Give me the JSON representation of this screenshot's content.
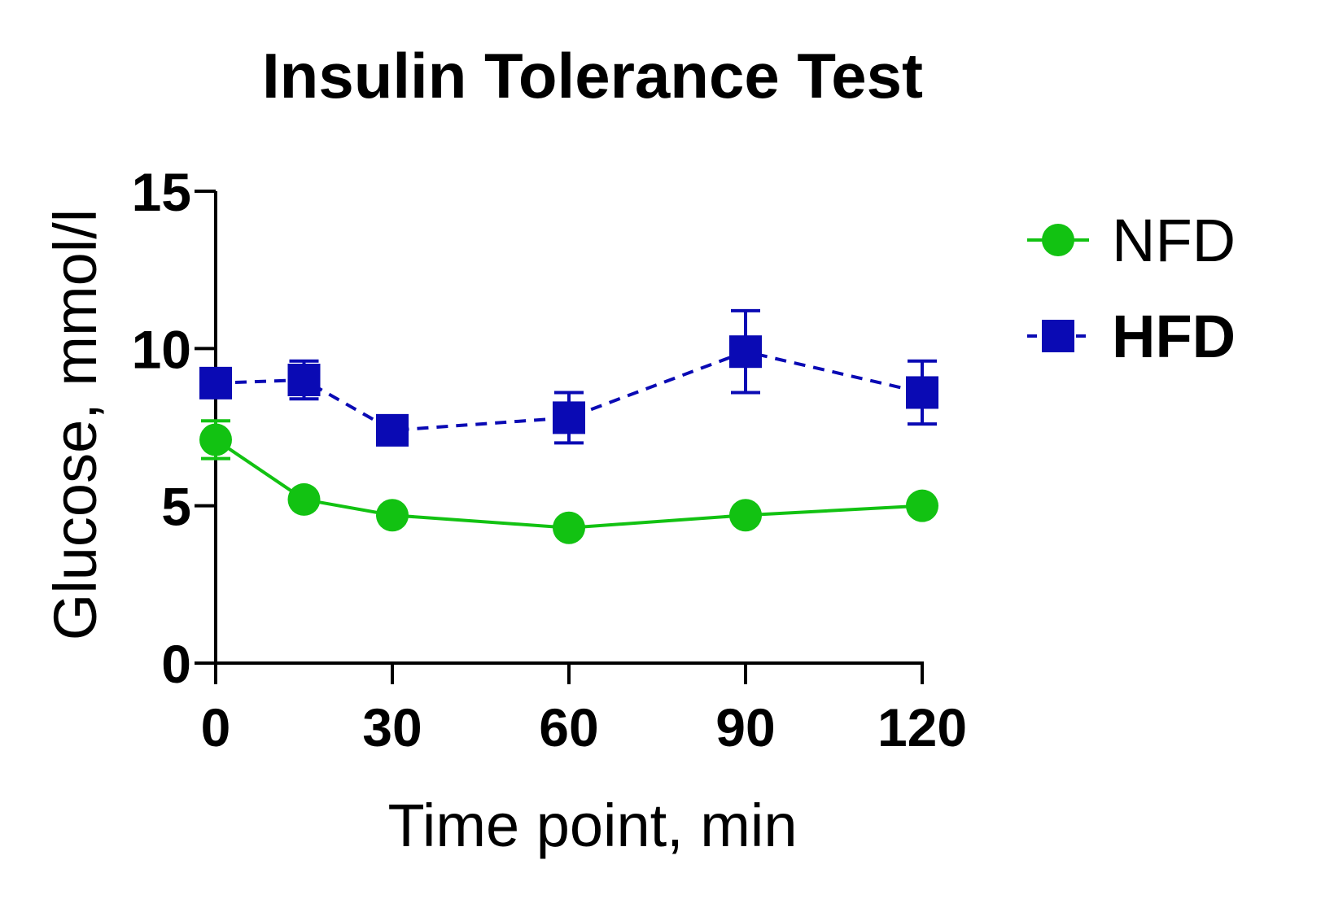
{
  "chart_data": {
    "type": "line",
    "title": "Insulin Tolerance Test",
    "xlabel": "Time point, min",
    "ylabel": "Glucose, mmol/l",
    "xlim": [
      0,
      120
    ],
    "ylim": [
      0,
      15
    ],
    "x_ticks": [
      0,
      30,
      60,
      90,
      120
    ],
    "y_ticks": [
      0,
      5,
      10,
      15
    ],
    "grid": false,
    "legend_position": "right",
    "series": [
      {
        "name": "NFD",
        "color": "#12c212",
        "marker": "circle",
        "line_style": "solid",
        "label_weight": "normal",
        "x": [
          0,
          15,
          30,
          60,
          90,
          120
        ],
        "y": [
          7.1,
          5.2,
          4.7,
          4.3,
          4.7,
          5.0
        ],
        "error": [
          0.6,
          0.15,
          0.15,
          0.1,
          0.15,
          0.1
        ]
      },
      {
        "name": "HFD",
        "color": "#0a0ab4",
        "marker": "square",
        "line_style": "dashed",
        "label_weight": "bold",
        "x": [
          0,
          15,
          30,
          60,
          90,
          120
        ],
        "y": [
          8.9,
          9.0,
          7.4,
          7.8,
          9.9,
          8.6
        ],
        "error": [
          0.2,
          0.6,
          0.3,
          0.8,
          1.3,
          1.0
        ]
      }
    ]
  }
}
